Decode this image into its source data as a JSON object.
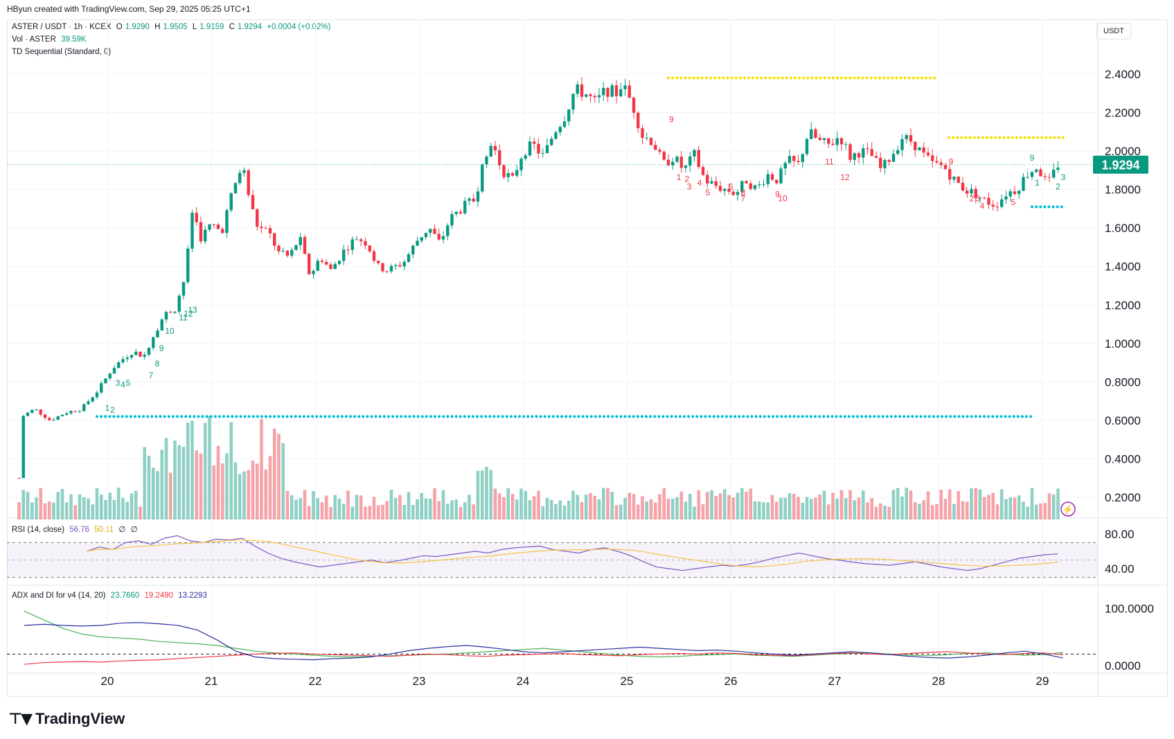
{
  "header": {
    "created_by": "HByun created with TradingView.com, Sep 29, 2025 05:25 UTC+1"
  },
  "currency_label": "USDT",
  "brand": {
    "name": "TradingView",
    "logo_icon": "tradingview-logo-icon"
  },
  "legend": {
    "symbol": "ASTER / USDT · 1h · KCEX",
    "open_label": "O",
    "open": "1.9290",
    "high_label": "H",
    "high": "1.9505",
    "low_label": "L",
    "low": "1.9159",
    "close_label": "C",
    "close": "1.9294",
    "change": "+0.0004 (+0.02%)",
    "vol_label": "Vol · ASTER",
    "vol_value": "39.59K",
    "td_label": "TD Sequential (Standard, 0)"
  },
  "rsi_legend": {
    "label": "RSI (14, close)",
    "rsi": "56.76",
    "ma": "50.11",
    "x1": "∅",
    "x2": "∅"
  },
  "adx_legend": {
    "label": "ADX and DI for v4 (14, 20)",
    "adx": "23.7660",
    "di_plus": "19.2490",
    "di_minus": "13.2293"
  },
  "current_price_tag": "1.9294",
  "colors": {
    "up": "#089981",
    "down": "#f23645",
    "vol_up": "#8fd0c5",
    "vol_down": "#f5a3a8",
    "rsi_line": "#7e57c2",
    "rsi_ma": "#f6c343",
    "adx_line": "#4caf50",
    "di_plus_line": "#f23645",
    "di_minus_line": "#2a2e9e",
    "resistance_dots": "#f5e100",
    "support_dots": "#00bcd4"
  },
  "chart_data": [
    {
      "type": "candlestick",
      "title": "ASTER / USDT · 1h · KCEX",
      "x_tick_labels": [
        "20",
        "21",
        "22",
        "23",
        "24",
        "25",
        "26",
        "27",
        "28",
        "29"
      ],
      "y_tick_labels": [
        "2.4000",
        "2.2000",
        "2.0000",
        "1.8000",
        "1.6000",
        "1.4000",
        "1.2000",
        "1.0000",
        "0.8000",
        "0.6000",
        "0.4000",
        "0.2000"
      ],
      "ylim": [
        0.15,
        2.52
      ],
      "x_day_range": [
        19.0,
        29.3
      ],
      "close_keypoints": [
        [
          19.15,
          0.3
        ],
        [
          19.18,
          0.62
        ],
        [
          19.3,
          0.66
        ],
        [
          19.45,
          0.6
        ],
        [
          19.6,
          0.64
        ],
        [
          19.75,
          0.66
        ],
        [
          19.9,
          0.75
        ],
        [
          20.05,
          0.87
        ],
        [
          20.15,
          0.92
        ],
        [
          20.25,
          0.96
        ],
        [
          20.35,
          0.93
        ],
        [
          20.45,
          1.05
        ],
        [
          20.55,
          1.15
        ],
        [
          20.65,
          1.18
        ],
        [
          20.75,
          1.35
        ],
        [
          20.82,
          1.7
        ],
        [
          20.9,
          1.55
        ],
        [
          21.0,
          1.62
        ],
        [
          21.1,
          1.58
        ],
        [
          21.2,
          1.78
        ],
        [
          21.3,
          1.93
        ],
        [
          21.38,
          1.72
        ],
        [
          21.45,
          1.6
        ],
        [
          21.55,
          1.58
        ],
        [
          21.65,
          1.47
        ],
        [
          21.75,
          1.45
        ],
        [
          21.85,
          1.55
        ],
        [
          21.95,
          1.35
        ],
        [
          22.05,
          1.45
        ],
        [
          22.15,
          1.38
        ],
        [
          22.3,
          1.5
        ],
        [
          22.4,
          1.55
        ],
        [
          22.5,
          1.52
        ],
        [
          22.6,
          1.4
        ],
        [
          22.7,
          1.38
        ],
        [
          22.85,
          1.42
        ],
        [
          23.0,
          1.55
        ],
        [
          23.1,
          1.6
        ],
        [
          23.2,
          1.52
        ],
        [
          23.3,
          1.65
        ],
        [
          23.45,
          1.72
        ],
        [
          23.55,
          1.75
        ],
        [
          23.6,
          1.95
        ],
        [
          23.7,
          2.05
        ],
        [
          23.8,
          1.9
        ],
        [
          23.9,
          1.85
        ],
        [
          24.0,
          2.0
        ],
        [
          24.1,
          2.03
        ],
        [
          24.2,
          1.97
        ],
        [
          24.3,
          2.1
        ],
        [
          24.4,
          2.18
        ],
        [
          24.5,
          2.32
        ],
        [
          24.6,
          2.3
        ],
        [
          24.7,
          2.25
        ],
        [
          24.8,
          2.32
        ],
        [
          24.9,
          2.3
        ],
        [
          24.95,
          2.35
        ],
        [
          25.05,
          2.25
        ],
        [
          25.15,
          2.08
        ],
        [
          25.25,
          2.05
        ],
        [
          25.35,
          1.93
        ],
        [
          25.45,
          1.97
        ],
        [
          25.55,
          1.9
        ],
        [
          25.65,
          1.98
        ],
        [
          25.75,
          1.85
        ],
        [
          25.85,
          1.82
        ],
        [
          25.95,
          1.8
        ],
        [
          26.05,
          1.78
        ],
        [
          26.15,
          1.85
        ],
        [
          26.25,
          1.8
        ],
        [
          26.35,
          1.88
        ],
        [
          26.45,
          1.85
        ],
        [
          26.55,
          1.95
        ],
        [
          26.65,
          1.93
        ],
        [
          26.75,
          2.1
        ],
        [
          26.85,
          2.05
        ],
        [
          26.95,
          2.03
        ],
        [
          27.05,
          2.08
        ],
        [
          27.15,
          1.97
        ],
        [
          27.25,
          2.0
        ],
        [
          27.35,
          1.98
        ],
        [
          27.45,
          1.9
        ],
        [
          27.55,
          1.98
        ],
        [
          27.65,
          2.07
        ],
        [
          27.75,
          2.05
        ],
        [
          27.85,
          1.98
        ],
        [
          27.95,
          1.93
        ],
        [
          28.05,
          1.92
        ],
        [
          28.15,
          1.85
        ],
        [
          28.25,
          1.8
        ],
        [
          28.35,
          1.78
        ],
        [
          28.45,
          1.74
        ],
        [
          28.55,
          1.72
        ],
        [
          28.65,
          1.78
        ],
        [
          28.75,
          1.8
        ],
        [
          28.85,
          1.88
        ],
        [
          28.95,
          1.92
        ],
        [
          29.05,
          1.82
        ],
        [
          29.15,
          1.93
        ]
      ],
      "volume_bars_approx_range": [
        0.0,
        0.65
      ],
      "horizontal_levels": [
        {
          "name": "resistance-yellow-1",
          "price": 2.38,
          "x_start": 25.4,
          "x_end": 28.0
        },
        {
          "name": "resistance-yellow-2",
          "price": 2.07,
          "x_start": 28.1,
          "x_end": 29.2
        },
        {
          "name": "support-cyan-1",
          "price": 0.62,
          "x_start": 19.9,
          "x_end": 28.9
        },
        {
          "name": "support-cyan-2",
          "price": 1.71,
          "x_start": 28.9,
          "x_end": 29.2
        }
      ],
      "td_counts_green": [
        "1",
        "2",
        "3",
        "4",
        "5",
        "7",
        "8",
        "9",
        "10",
        "11",
        "12",
        "13",
        "9",
        "1",
        "2",
        "3"
      ],
      "td_counts_red": [
        "9",
        "1",
        "2",
        "3",
        "4",
        "5",
        "6",
        "7",
        "8",
        "9",
        "10",
        "11",
        "12",
        "9",
        "1",
        "2",
        "3",
        "4",
        "5"
      ]
    },
    {
      "type": "line",
      "title": "RSI (14, close)",
      "y_tick_labels": [
        "80.00",
        "40.00"
      ],
      "ylim": [
        25,
        95
      ],
      "band": [
        30,
        70
      ],
      "series": [
        {
          "name": "RSI",
          "values": [
            60,
            65,
            62,
            70,
            72,
            68,
            75,
            78,
            72,
            70,
            74,
            73,
            75,
            66,
            58,
            52,
            48,
            45,
            42,
            44,
            46,
            48,
            50,
            47,
            49,
            52,
            55,
            54,
            56,
            58,
            60,
            58,
            62,
            64,
            65,
            66,
            62,
            60,
            58,
            62,
            64,
            60,
            55,
            48,
            42,
            40,
            38,
            40,
            42,
            44,
            43,
            45,
            48,
            52,
            55,
            58,
            55,
            52,
            50,
            48,
            46,
            45,
            44,
            46,
            48,
            45,
            42,
            40,
            38,
            40,
            44,
            48,
            52,
            54,
            56,
            57
          ]
        }
      ]
    },
    {
      "type": "line",
      "title": "ADX and DI for v4 (14, 20)",
      "y_tick_labels": [
        "100.0000",
        "0.0000"
      ],
      "ylim": [
        -5,
        110
      ],
      "threshold": 20,
      "series": [
        {
          "name": "ADX",
          "values": [
            95,
            80,
            65,
            55,
            50,
            48,
            46,
            42,
            40,
            38,
            35,
            30,
            25,
            22,
            20,
            18,
            16,
            15,
            16,
            17,
            18,
            19,
            20,
            22,
            24,
            26,
            28,
            30,
            27,
            24,
            21,
            18,
            16,
            15,
            16,
            18,
            19,
            20,
            18,
            17,
            16,
            18,
            20,
            21,
            22,
            20,
            18,
            17,
            19,
            21,
            22,
            20,
            18,
            19,
            23
          ]
        },
        {
          "name": "DI+",
          "values": [
            2,
            5,
            6,
            7,
            6,
            8,
            9,
            10,
            12,
            14,
            16,
            18,
            20,
            21,
            22,
            20,
            19,
            18,
            17,
            16,
            18,
            20,
            19,
            17,
            16,
            18,
            19,
            20,
            21,
            19,
            18,
            17,
            19,
            20,
            21,
            20,
            22,
            21,
            19,
            18,
            17,
            19,
            21,
            22,
            20,
            19,
            21,
            23,
            24,
            22,
            20,
            19,
            21,
            22,
            19
          ]
        },
        {
          "name": "DI-",
          "values": [
            70,
            72,
            70,
            69,
            70,
            74,
            75,
            73,
            70,
            62,
            45,
            25,
            15,
            12,
            11,
            10,
            12,
            13,
            15,
            20,
            26,
            30,
            33,
            35,
            32,
            28,
            24,
            22,
            24,
            26,
            28,
            30,
            32,
            30,
            28,
            26,
            27,
            25,
            22,
            20,
            18,
            20,
            22,
            24,
            22,
            19,
            16,
            14,
            13,
            15,
            18,
            22,
            25,
            20,
            13
          ]
        }
      ]
    }
  ]
}
